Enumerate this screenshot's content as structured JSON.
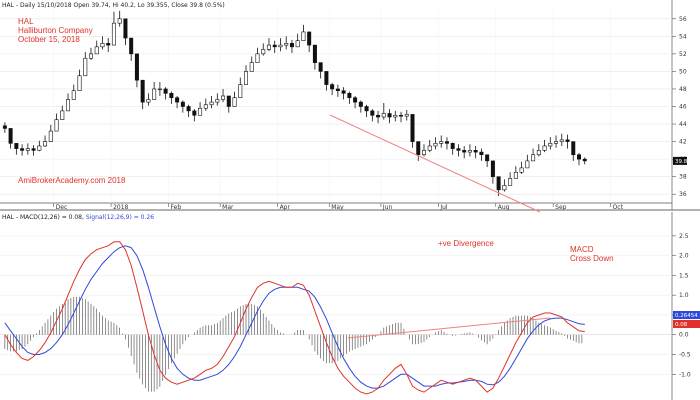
{
  "header": {
    "price_title": "HAL - Daily 15/10/2018 Open 39.74, Hi 40.2, Lo 39.355, Close 39.8 (0.5%)",
    "macd_prefix": "HAL - MACD(12,26) = 0.08, ",
    "macd_signal": "Signal(12,26,9) = 0.26"
  },
  "annotations": {
    "ticker": "HAL",
    "company": "Halliburton Company",
    "date": "October 15, 2018",
    "watermark": "AmiBrokerAcademy.com  2018",
    "divergence": "+ve Divergence",
    "macd_1": "MACD",
    "macd_2": "Cross Down"
  },
  "chart_data": [
    {
      "type": "candlestick",
      "y_ticks": [
        36,
        38,
        40,
        42,
        44,
        46,
        48,
        50,
        52,
        54,
        56
      ],
      "ylim": [
        35,
        57
      ],
      "x_labels": [
        "Dec",
        "2018",
        "Feb",
        "Mar",
        "Apr",
        "May",
        "Jun",
        "Jul",
        "Aug",
        "Sep",
        "Oct"
      ],
      "x_label_pos": [
        9,
        19,
        29,
        38,
        48,
        57,
        66,
        76,
        86,
        96,
        106
      ],
      "x_range": [
        0,
        116
      ],
      "last_close": 39.8,
      "last_close_label": "39.8",
      "close": [
        43.5,
        41.8,
        41.2,
        41.0,
        41.2,
        41.0,
        41.5,
        42.0,
        43.2,
        44.5,
        45.5,
        46.8,
        47.8,
        49.5,
        51.5,
        52.0,
        52.8,
        53.2,
        53.0,
        55.5,
        56.0,
        53.8,
        52.0,
        49.0,
        46.5,
        46.8,
        48.0,
        48.0,
        47.5,
        47.0,
        46.5,
        46.0,
        45.5,
        45.0,
        45.8,
        46.2,
        46.5,
        46.8,
        47.2,
        46.0,
        47.0,
        48.5,
        50.0,
        51.0,
        52.0,
        52.5,
        53.0,
        52.8,
        53.0,
        53.2,
        52.8,
        53.5,
        54.5,
        53.0,
        51.0,
        50.0,
        48.5,
        48.0,
        47.8,
        47.5,
        47.0,
        46.5,
        46.0,
        45.5,
        45.0,
        44.8,
        45.2,
        44.8,
        45.0,
        44.9,
        45.1,
        42.0,
        40.5,
        41.0,
        41.5,
        41.8,
        42.0,
        41.8,
        41.2,
        41.0,
        40.8,
        41.0,
        40.8,
        40.5,
        39.8,
        38.0,
        36.5,
        37.0,
        37.8,
        38.5,
        39.0,
        39.8,
        40.5,
        41.0,
        41.5,
        41.8,
        42.0,
        42.2,
        42.0,
        40.5,
        40.0,
        39.8
      ],
      "high": [
        44.2,
        42.6,
        41.8,
        41.7,
        41.8,
        41.6,
        42.1,
        42.7,
        43.9,
        45.2,
        46.1,
        47.5,
        48.5,
        50.2,
        52.2,
        52.7,
        53.5,
        54.0,
        53.8,
        56.8,
        56.9,
        54.6,
        52.8,
        49.9,
        47.4,
        47.5,
        48.8,
        48.8,
        48.2,
        47.7,
        47.2,
        46.7,
        46.2,
        45.7,
        46.5,
        46.9,
        47.2,
        47.5,
        48.0,
        46.8,
        47.7,
        49.3,
        50.7,
        51.7,
        52.7,
        53.2,
        53.8,
        53.5,
        53.8,
        54.0,
        53.6,
        54.3,
        55.3,
        53.8,
        51.9,
        50.8,
        49.3,
        48.7,
        48.5,
        48.2,
        47.7,
        47.2,
        46.7,
        46.2,
        45.7,
        45.5,
        46.4,
        45.7,
        45.5,
        45.4,
        45.6,
        42.7,
        41.2,
        41.7,
        42.2,
        42.5,
        42.7,
        42.5,
        41.9,
        41.7,
        41.5,
        41.7,
        41.5,
        41.2,
        40.5,
        38.8,
        37.2,
        37.7,
        38.5,
        39.2,
        39.7,
        40.5,
        41.2,
        41.7,
        42.2,
        42.5,
        42.7,
        42.9,
        42.8,
        41.3,
        40.7,
        40.2
      ],
      "low": [
        43.0,
        41.2,
        40.5,
        40.4,
        40.5,
        40.4,
        40.9,
        41.4,
        42.5,
        43.9,
        44.8,
        46.1,
        47.1,
        48.8,
        50.8,
        51.3,
        52.1,
        52.5,
        52.2,
        54.8,
        55.1,
        53.0,
        51.2,
        48.2,
        45.7,
        46.1,
        47.2,
        47.2,
        46.8,
        46.3,
        45.8,
        45.3,
        44.8,
        44.3,
        45.1,
        45.5,
        45.8,
        46.1,
        46.5,
        45.3,
        46.3,
        47.8,
        49.2,
        50.3,
        51.3,
        51.8,
        52.3,
        52.1,
        52.3,
        52.5,
        52.1,
        52.8,
        53.7,
        52.2,
        50.2,
        49.2,
        47.8,
        47.3,
        47.1,
        46.8,
        46.3,
        45.8,
        45.3,
        44.8,
        44.3,
        44.1,
        44.5,
        44.1,
        44.3,
        44.2,
        44.4,
        41.3,
        39.8,
        40.3,
        40.8,
        41.1,
        41.3,
        41.1,
        40.5,
        40.3,
        40.1,
        40.3,
        40.1,
        39.8,
        39.1,
        37.2,
        35.8,
        36.3,
        37.1,
        37.8,
        38.3,
        39.1,
        39.8,
        40.3,
        40.8,
        41.1,
        41.3,
        41.5,
        41.2,
        39.8,
        39.3,
        39.4
      ]
    },
    {
      "type": "line",
      "y_ticks": [
        -1.0,
        -0.5,
        0.0,
        0.5,
        1.0,
        1.5,
        2.0,
        2.5
      ],
      "y_tick_labels": [
        "-1.0",
        "-0.5",
        "0.0",
        "0.5",
        "1.0",
        "1.5",
        "2.0",
        "2.5"
      ],
      "ylim": [
        -1.6,
        2.8
      ],
      "last_macd_label": "0.08",
      "last_signal_label": "0.26454",
      "series": [
        {
          "name": "MACD(12,26)",
          "color": "#e0322b",
          "values": [
            0.0,
            -0.25,
            -0.45,
            -0.6,
            -0.65,
            -0.55,
            -0.4,
            -0.2,
            0.05,
            0.35,
            0.65,
            1.0,
            1.35,
            1.65,
            1.9,
            2.05,
            2.15,
            2.2,
            2.25,
            2.35,
            2.35,
            2.15,
            1.75,
            1.2,
            0.6,
            0.0,
            -0.5,
            -0.9,
            -1.1,
            -1.2,
            -1.25,
            -1.2,
            -1.15,
            -1.1,
            -1.0,
            -0.9,
            -0.85,
            -0.75,
            -0.55,
            -0.3,
            -0.05,
            0.3,
            0.65,
            0.95,
            1.2,
            1.3,
            1.35,
            1.3,
            1.25,
            1.2,
            1.2,
            1.3,
            1.25,
            1.0,
            0.6,
            0.2,
            -0.2,
            -0.55,
            -0.85,
            -1.05,
            -1.2,
            -1.35,
            -1.45,
            -1.5,
            -1.45,
            -1.35,
            -1.15,
            -1.0,
            -0.85,
            -0.75,
            -1.0,
            -1.3,
            -1.4,
            -1.45,
            -1.35,
            -1.25,
            -1.15,
            -1.2,
            -1.25,
            -1.2,
            -1.15,
            -1.1,
            -1.15,
            -1.3,
            -1.45,
            -1.35,
            -1.1,
            -0.8,
            -0.5,
            -0.2,
            0.05,
            0.3,
            0.45,
            0.5,
            0.55,
            0.55,
            0.5,
            0.45,
            0.3,
            0.2,
            0.1,
            0.08
          ]
        },
        {
          "name": "Signal(12,26,9)",
          "color": "#2f49d8",
          "values": [
            0.3,
            0.1,
            -0.1,
            -0.3,
            -0.45,
            -0.5,
            -0.5,
            -0.45,
            -0.35,
            -0.2,
            0.0,
            0.25,
            0.55,
            0.85,
            1.15,
            1.4,
            1.6,
            1.8,
            1.95,
            2.1,
            2.2,
            2.25,
            2.2,
            2.0,
            1.65,
            1.2,
            0.7,
            0.2,
            -0.25,
            -0.6,
            -0.85,
            -1.0,
            -1.1,
            -1.15,
            -1.15,
            -1.1,
            -1.05,
            -1.0,
            -0.9,
            -0.75,
            -0.55,
            -0.3,
            0.0,
            0.3,
            0.6,
            0.85,
            1.05,
            1.15,
            1.2,
            1.2,
            1.2,
            1.2,
            1.15,
            1.1,
            0.95,
            0.7,
            0.4,
            0.05,
            -0.3,
            -0.6,
            -0.85,
            -1.05,
            -1.2,
            -1.3,
            -1.35,
            -1.35,
            -1.3,
            -1.2,
            -1.1,
            -1.0,
            -1.0,
            -1.1,
            -1.2,
            -1.3,
            -1.3,
            -1.3,
            -1.25,
            -1.22,
            -1.22,
            -1.2,
            -1.18,
            -1.15,
            -1.15,
            -1.18,
            -1.25,
            -1.27,
            -1.2,
            -1.05,
            -0.85,
            -0.6,
            -0.35,
            -0.1,
            0.1,
            0.25,
            0.35,
            0.4,
            0.42,
            0.42,
            0.38,
            0.33,
            0.28,
            0.26
          ]
        }
      ]
    }
  ]
}
